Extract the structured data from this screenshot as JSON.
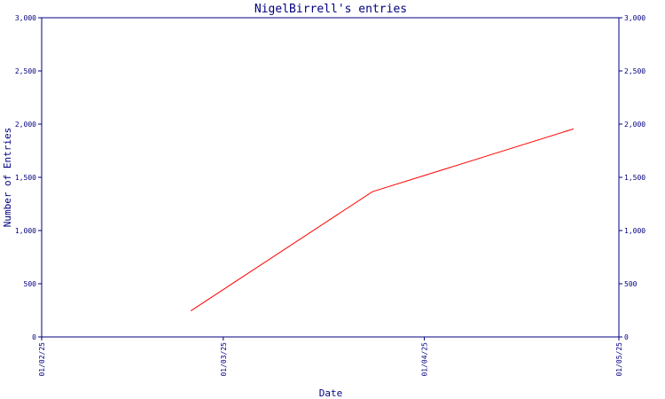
{
  "chart_data": {
    "type": "line",
    "title": "NigelBirrell's entries",
    "xlabel": "Date",
    "ylabel": "Number of Entries",
    "x_ticks": [
      "01/02/25",
      "01/03/25",
      "01/04/25",
      "01/05/25"
    ],
    "xlim": [
      "2025-02-01",
      "2025-05-01"
    ],
    "ylim": [
      0,
      3000
    ],
    "y_ticks": [
      0,
      500,
      1000,
      1500,
      2000,
      2500,
      3000
    ],
    "y_tick_labels": [
      "0",
      "500",
      "1,000",
      "1,500",
      "2,000",
      "2,500",
      "3,000"
    ],
    "grid": false,
    "legend": "none",
    "series": [
      {
        "color": "#ff0000",
        "points": [
          {
            "x": "2025-02-24",
            "y": 245
          },
          {
            "x": "2025-03-24",
            "y": 1365
          },
          {
            "x": "2025-04-24",
            "y": 1955
          }
        ]
      }
    ]
  }
}
